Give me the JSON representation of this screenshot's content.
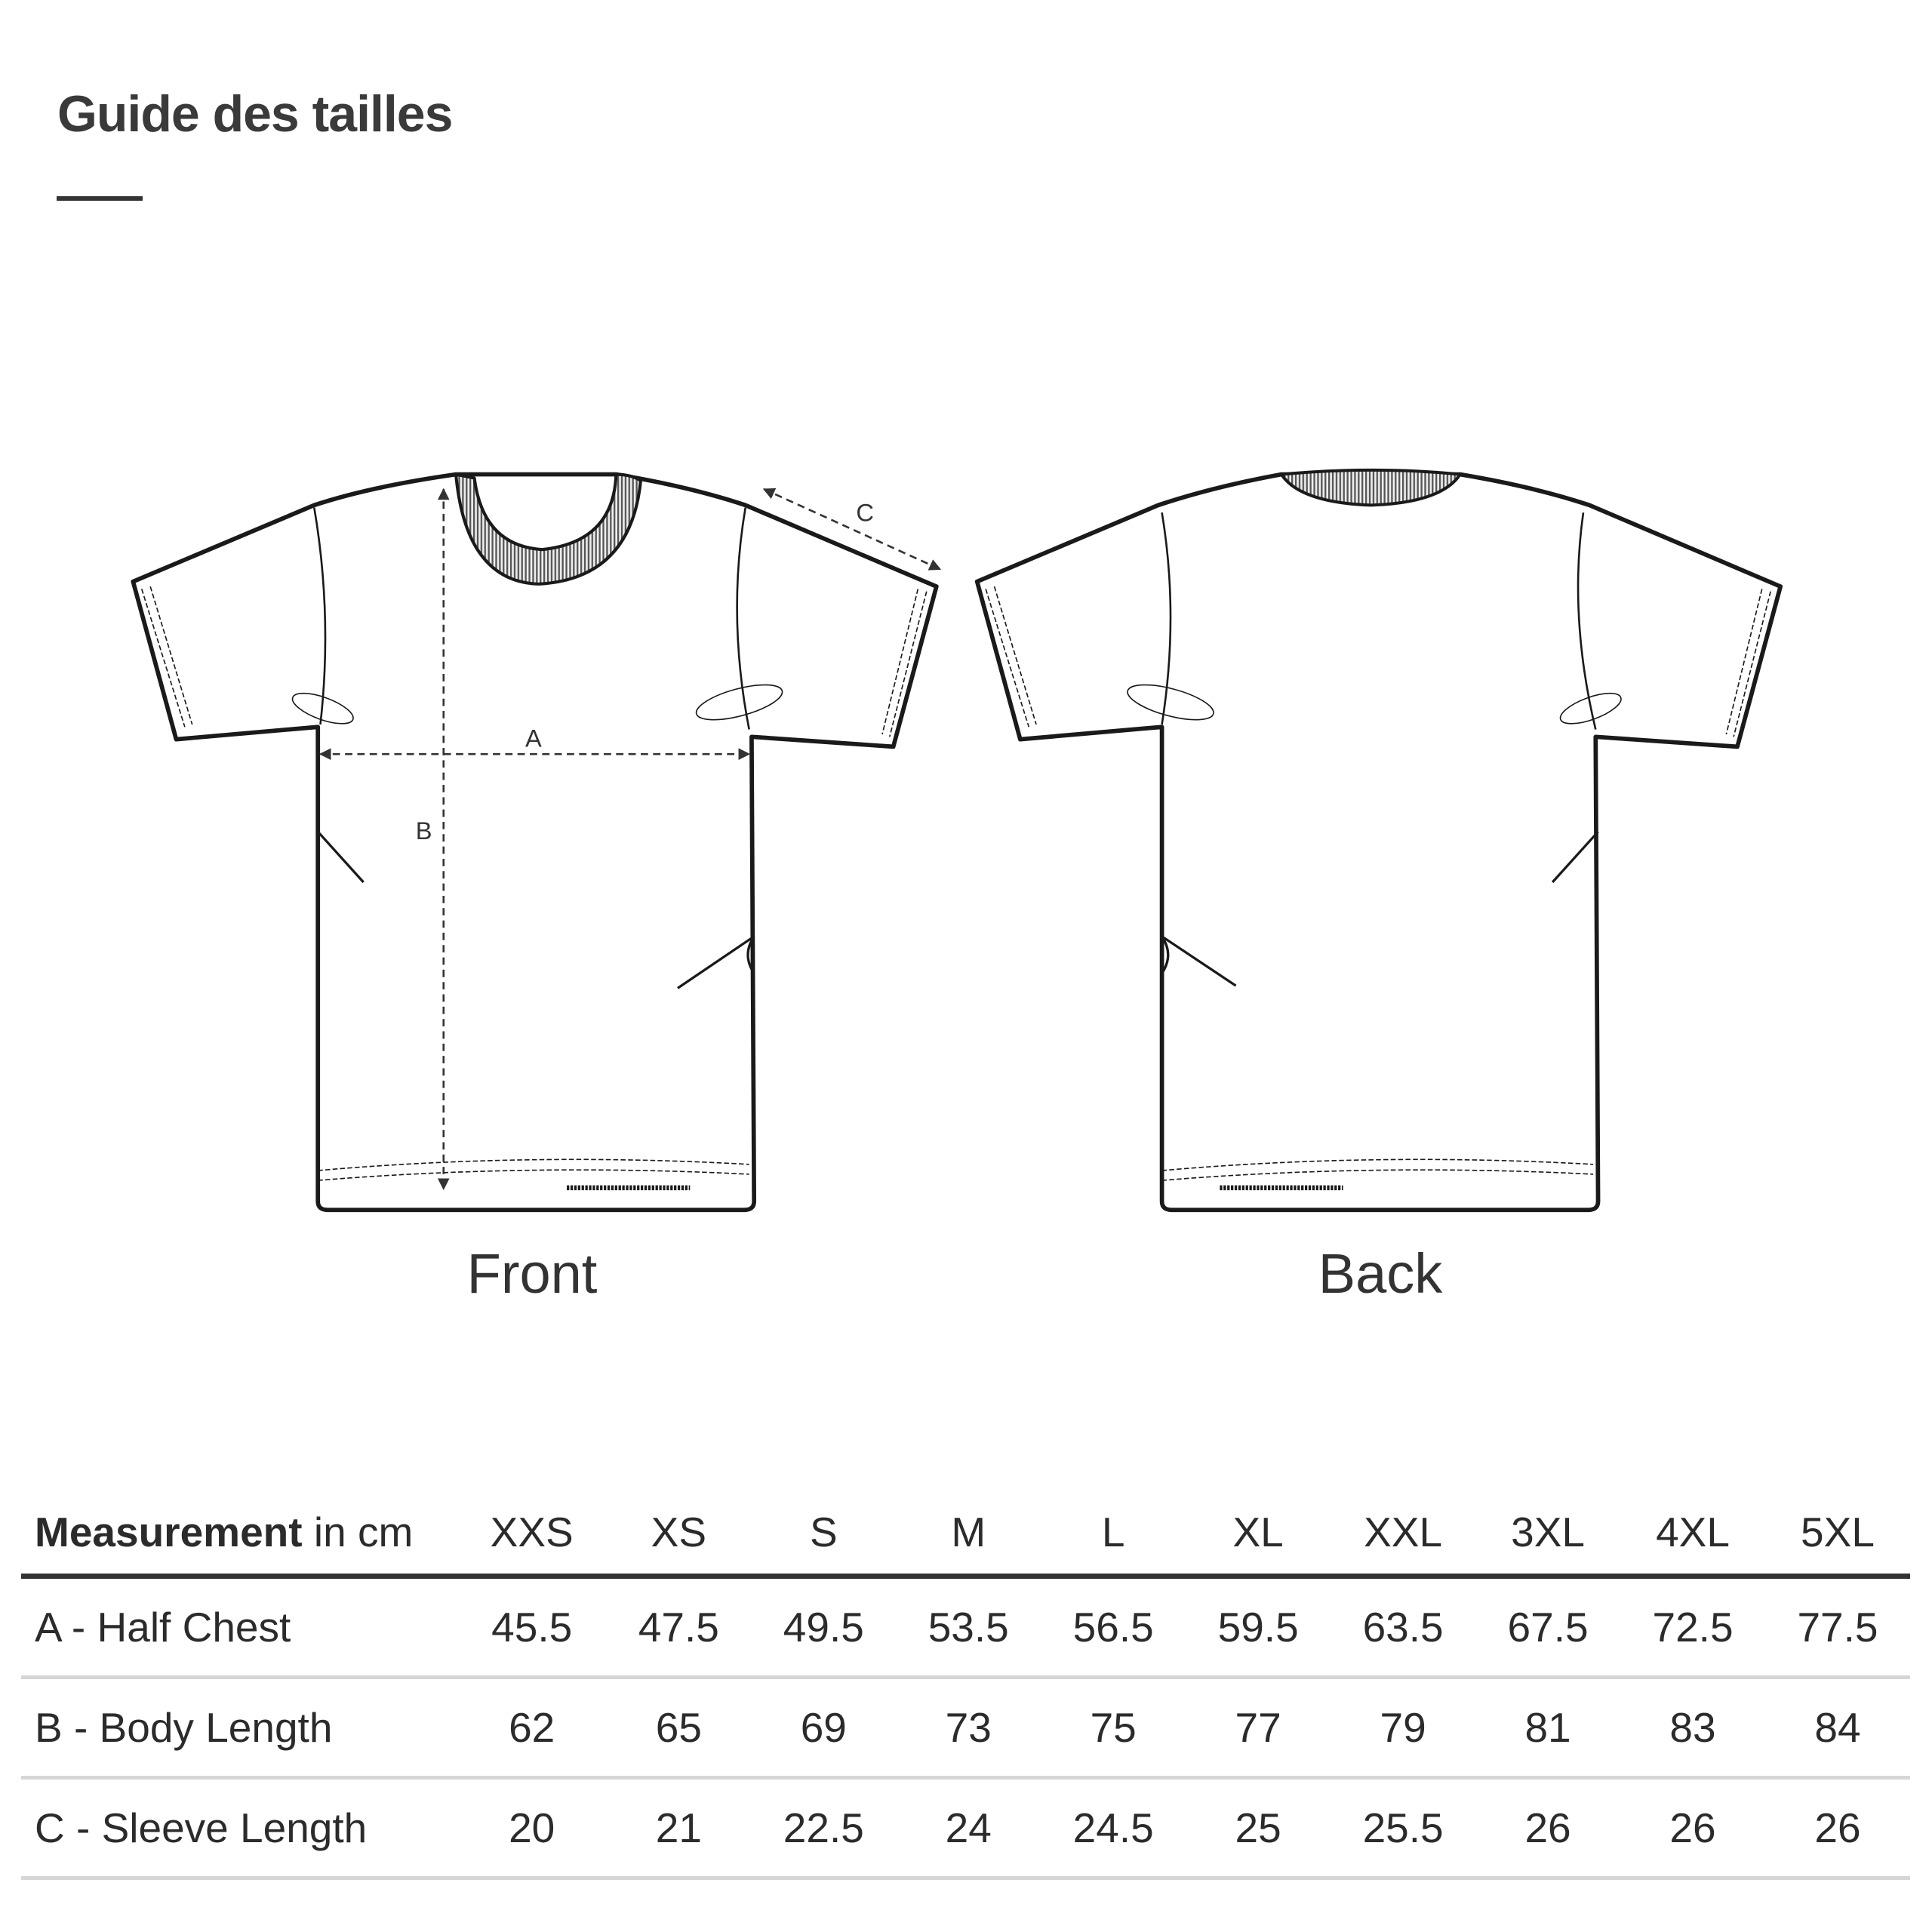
{
  "title": "Guide des tailles",
  "views": {
    "front": "Front",
    "back": "Back"
  },
  "diagram_labels": {
    "a": "A",
    "b": "B",
    "c": "C"
  },
  "table": {
    "header_bold": "Measurement",
    "header_rest": " in cm",
    "sizes": [
      "XXS",
      "XS",
      "S",
      "M",
      "L",
      "XL",
      "XXL",
      "3XL",
      "4XL",
      "5XL"
    ],
    "rows": [
      {
        "label": "A - Half Chest",
        "values": [
          "45.5",
          "47.5",
          "49.5",
          "53.5",
          "56.5",
          "59.5",
          "63.5",
          "67.5",
          "72.5",
          "77.5"
        ]
      },
      {
        "label": "B - Body Length",
        "values": [
          "62",
          "65",
          "69",
          "73",
          "75",
          "77",
          "79",
          "81",
          "83",
          "84"
        ]
      },
      {
        "label": "C - Sleeve Length",
        "values": [
          "20",
          "21",
          "22.5",
          "24",
          "24.5",
          "25",
          "25.5",
          "26",
          "26",
          "26"
        ]
      }
    ]
  }
}
